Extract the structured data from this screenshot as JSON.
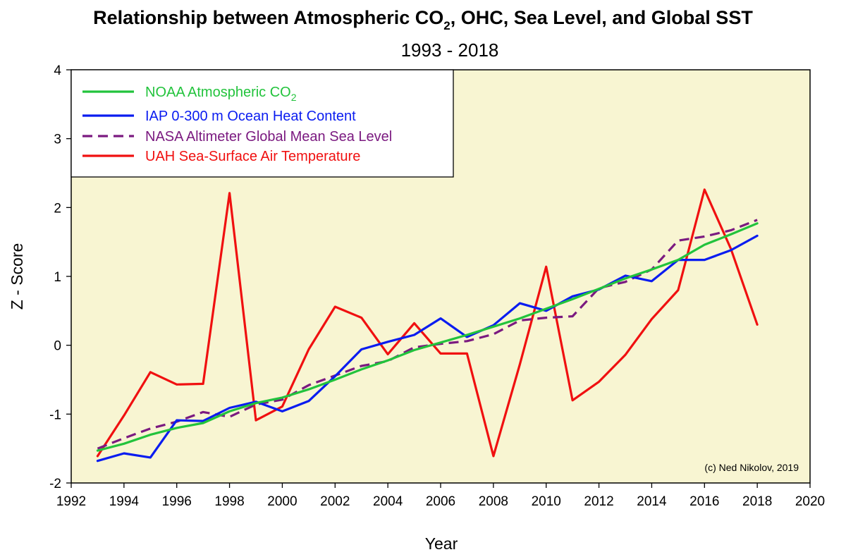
{
  "chart_data": {
    "type": "line",
    "title_main": "Relationship between Atmospheric CO",
    "title_sub2": "2",
    "title_rest": ", OHC, Sea Level, and Global SST",
    "subtitle": "1993 - 2018",
    "xlabel": "Year",
    "ylabel": "Z - Score",
    "xlim": [
      1992,
      2020
    ],
    "ylim": [
      -2,
      4
    ],
    "xticks": [
      1992,
      1994,
      1996,
      1998,
      2000,
      2002,
      2004,
      2006,
      2008,
      2010,
      2012,
      2014,
      2016,
      2018,
      2020
    ],
    "yticks": [
      -2,
      -1,
      0,
      1,
      2,
      3,
      4
    ],
    "plot_background": "#f8f5d2",
    "legend_location": "top-left",
    "credit": "(c) Ned Nikolov, 2019",
    "series": [
      {
        "name": "NOAA Atmospheric CO",
        "name_sub": "2",
        "color": "#22c33c",
        "dash": "solid",
        "x": [
          1993,
          1994,
          1995,
          1996,
          1997,
          1998,
          1999,
          2000,
          2001,
          2002,
          2003,
          2004,
          2005,
          2006,
          2007,
          2008,
          2009,
          2010,
          2011,
          2012,
          2013,
          2014,
          2015,
          2016,
          2017,
          2018
        ],
        "y": [
          -1.53,
          -1.43,
          -1.3,
          -1.2,
          -1.13,
          -0.96,
          -0.84,
          -0.76,
          -0.64,
          -0.5,
          -0.35,
          -0.22,
          -0.07,
          0.04,
          0.15,
          0.27,
          0.39,
          0.53,
          0.67,
          0.82,
          0.97,
          1.1,
          1.24,
          1.46,
          1.61,
          1.77
        ]
      },
      {
        "name": "IAP 0-300 m Ocean Heat Content",
        "name_sub": "",
        "color": "#0a1cf0",
        "dash": "solid",
        "x": [
          1993,
          1994,
          1995,
          1996,
          1997,
          1998,
          1999,
          2000,
          2001,
          2002,
          2003,
          2004,
          2005,
          2006,
          2007,
          2008,
          2009,
          2010,
          2011,
          2012,
          2013,
          2014,
          2015,
          2016,
          2017,
          2018
        ],
        "y": [
          -1.68,
          -1.57,
          -1.63,
          -1.09,
          -1.1,
          -0.91,
          -0.82,
          -0.96,
          -0.81,
          -0.45,
          -0.06,
          0.05,
          0.15,
          0.39,
          0.12,
          0.29,
          0.61,
          0.5,
          0.71,
          0.81,
          1.01,
          0.93,
          1.24,
          1.24,
          1.38,
          1.59
        ]
      },
      {
        "name": "NASA Altimeter Global Mean Sea Level",
        "name_sub": "",
        "color": "#7b1a80",
        "dash": "dashed",
        "x": [
          1993,
          1994,
          1995,
          1996,
          1997,
          1998,
          1999,
          2000,
          2001,
          2002,
          2003,
          2004,
          2005,
          2006,
          2007,
          2008,
          2009,
          2010,
          2011,
          2012,
          2013,
          2014,
          2015,
          2016,
          2017,
          2018
        ],
        "y": [
          -1.5,
          -1.35,
          -1.21,
          -1.11,
          -0.97,
          -1.04,
          -0.86,
          -0.79,
          -0.58,
          -0.44,
          -0.3,
          -0.23,
          -0.03,
          0.02,
          0.06,
          0.16,
          0.36,
          0.4,
          0.42,
          0.83,
          0.92,
          1.1,
          1.52,
          1.58,
          1.67,
          1.82
        ]
      },
      {
        "name": "UAH Sea-Surface Air Temperature",
        "name_sub": "",
        "color": "#f01010",
        "dash": "solid",
        "x": [
          1993,
          1994,
          1995,
          1996,
          1997,
          1998,
          1999,
          2000,
          2001,
          2002,
          2003,
          2004,
          2005,
          2006,
          2007,
          2008,
          2009,
          2010,
          2011,
          2012,
          2013,
          2014,
          2015,
          2016,
          2017,
          2018
        ],
        "y": [
          -1.61,
          -1.02,
          -0.39,
          -0.57,
          -0.56,
          2.21,
          -1.09,
          -0.89,
          -0.06,
          0.56,
          0.4,
          -0.13,
          0.32,
          -0.12,
          -0.12,
          -1.61,
          -0.28,
          1.14,
          -0.8,
          -0.53,
          -0.14,
          0.38,
          0.8,
          2.26,
          1.4,
          0.3
        ]
      }
    ]
  }
}
